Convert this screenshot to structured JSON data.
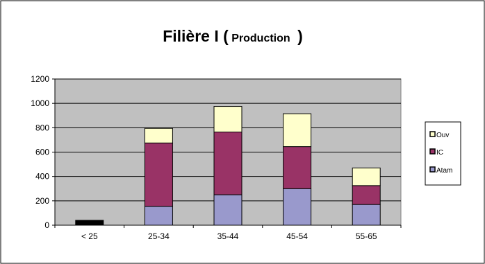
{
  "chart_data": {
    "type": "bar",
    "stacked": true,
    "title_main": "Filière I (",
    "title_sub": "Production",
    "title_close": ")",
    "categories": [
      "< 25",
      "25-34",
      "35-44",
      "45-54",
      "55-65"
    ],
    "series": [
      {
        "name": "Atam",
        "color": "#9999cc",
        "values": [
          0,
          155,
          250,
          300,
          170
        ]
      },
      {
        "name": "IC",
        "color": "#993366",
        "values": [
          0,
          520,
          515,
          345,
          155
        ]
      },
      {
        "name": "Ouv",
        "color": "#ffffcc",
        "values": [
          0,
          120,
          210,
          270,
          145
        ]
      }
    ],
    "extra_bars": [
      {
        "category": "< 25",
        "value": 40,
        "color": "#000000"
      }
    ],
    "legend_order": [
      "Ouv",
      "IC",
      "Atam"
    ],
    "legend_position": "right",
    "ylim": [
      0,
      1200
    ],
    "yticks": [
      0,
      200,
      400,
      600,
      800,
      1000,
      1200
    ],
    "grid": true,
    "plot_background": "#c0c0c0"
  }
}
